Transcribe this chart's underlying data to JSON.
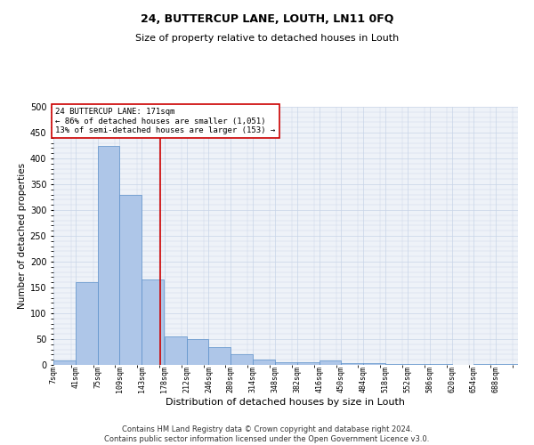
{
  "title_main": "24, BUTTERCUP LANE, LOUTH, LN11 0FQ",
  "title_sub": "Size of property relative to detached houses in Louth",
  "xlabel": "Distribution of detached houses by size in Louth",
  "ylabel": "Number of detached properties",
  "footer1": "Contains HM Land Registry data © Crown copyright and database right 2024.",
  "footer2": "Contains public sector information licensed under the Open Government Licence v3.0.",
  "annotation_line1": "24 BUTTERCUP LANE: 171sqm",
  "annotation_line2": "← 86% of detached houses are smaller (1,051)",
  "annotation_line3": "13% of semi-detached houses are larger (153) →",
  "property_size": 171,
  "bar_labels": [
    "7sqm",
    "41sqm",
    "75sqm",
    "109sqm",
    "143sqm",
    "178sqm",
    "212sqm",
    "246sqm",
    "280sqm",
    "314sqm",
    "348sqm",
    "382sqm",
    "416sqm",
    "450sqm",
    "484sqm",
    "518sqm",
    "552sqm",
    "586sqm",
    "620sqm",
    "654sqm",
    "688sqm"
  ],
  "bar_left_edges": [
    7,
    41,
    75,
    109,
    143,
    178,
    212,
    246,
    280,
    314,
    348,
    382,
    416,
    450,
    484,
    518,
    552,
    586,
    620,
    654,
    688
  ],
  "bar_widths": [
    34,
    34,
    34,
    34,
    34,
    34,
    34,
    34,
    34,
    34,
    34,
    34,
    34,
    34,
    34,
    34,
    34,
    34,
    34,
    34,
    34
  ],
  "bar_heights": [
    8,
    160,
    425,
    330,
    165,
    55,
    50,
    35,
    20,
    10,
    5,
    5,
    8,
    3,
    3,
    2,
    2,
    1,
    0,
    1,
    2
  ],
  "bar_color": "#aec6e8",
  "bar_edge_color": "#5b8fc9",
  "vline_x": 171,
  "vline_color": "#cc0000",
  "annotation_box_color": "#cc0000",
  "ylim": [
    0,
    500
  ],
  "yticks": [
    0,
    50,
    100,
    150,
    200,
    250,
    300,
    350,
    400,
    450,
    500
  ],
  "grid_color": "#c8d4e8",
  "bg_color": "#eef2f8",
  "fig_bg_color": "#ffffff",
  "title_main_fontsize": 9,
  "title_sub_fontsize": 8,
  "xlabel_fontsize": 8,
  "ylabel_fontsize": 7.5,
  "annotation_fontsize": 6.5,
  "footer_fontsize": 6,
  "xtick_fontsize": 6,
  "ytick_fontsize": 7
}
